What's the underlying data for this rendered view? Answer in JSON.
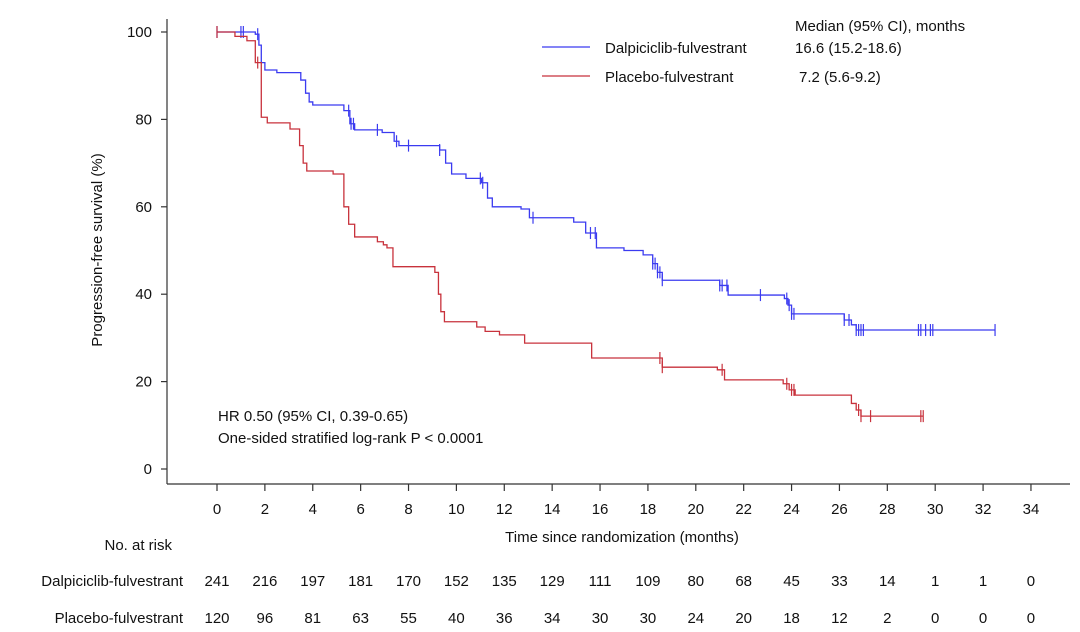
{
  "chart_data": {
    "type": "line",
    "subtype": "kaplan-meier",
    "xlabel": "Time since randomization (months)",
    "ylabel": "Progression-free survival (%)",
    "xlim": [
      0,
      34
    ],
    "ylim": [
      0,
      100
    ],
    "x_ticks": [
      0,
      2,
      4,
      6,
      8,
      10,
      12,
      14,
      16,
      18,
      20,
      22,
      24,
      26,
      28,
      30,
      32,
      34
    ],
    "y_ticks": [
      0,
      20,
      40,
      60,
      80,
      100
    ],
    "grid": false,
    "legend": {
      "placement": "top-right",
      "header": "Median (95% CI), months"
    },
    "annotations": [
      "HR 0.50 (95% CI, 0.39-0.65)",
      "One-sided stratified log-rank P < 0.0001"
    ],
    "series": [
      {
        "name": "Dalpiciclib-fulvestrant",
        "median": "16.6 (15.2-18.6)",
        "color": "#3b3bf0",
        "steps": [
          [
            0,
            100
          ],
          [
            1.6,
            99.5
          ],
          [
            1.75,
            97
          ],
          [
            1.85,
            93
          ],
          [
            2.0,
            91.3
          ],
          [
            2.5,
            90.7
          ],
          [
            3.5,
            89
          ],
          [
            3.7,
            86
          ],
          [
            3.85,
            84
          ],
          [
            4.0,
            83.3
          ],
          [
            5.3,
            82
          ],
          [
            5.55,
            79
          ],
          [
            5.75,
            77.6
          ],
          [
            6.9,
            77
          ],
          [
            7.4,
            75
          ],
          [
            7.6,
            74
          ],
          [
            9.3,
            73
          ],
          [
            9.55,
            70
          ],
          [
            9.8,
            67.5
          ],
          [
            10.4,
            66.5
          ],
          [
            11.05,
            65.5
          ],
          [
            11.3,
            62
          ],
          [
            11.5,
            60
          ],
          [
            12.7,
            59.5
          ],
          [
            13.05,
            57.5
          ],
          [
            14.9,
            56.5
          ],
          [
            15.4,
            54
          ],
          [
            15.85,
            50.6
          ],
          [
            17.0,
            50
          ],
          [
            17.8,
            49
          ],
          [
            18.2,
            47
          ],
          [
            18.4,
            45
          ],
          [
            18.6,
            43.2
          ],
          [
            21.0,
            42
          ],
          [
            21.35,
            39.8
          ],
          [
            23.7,
            39
          ],
          [
            23.85,
            37.5
          ],
          [
            24.0,
            35.5
          ],
          [
            26.2,
            34.1
          ],
          [
            26.5,
            33
          ],
          [
            26.7,
            31.8
          ]
        ],
        "end": 32.5,
        "censored": [
          0,
          1.0,
          1.1,
          1.7,
          5.5,
          5.6,
          5.7,
          6.7,
          7.5,
          8.0,
          9.3,
          11.0,
          11.1,
          13.2,
          15.6,
          15.8,
          18.2,
          18.3,
          18.4,
          18.5,
          18.6,
          21.0,
          21.1,
          21.3,
          22.7,
          23.8,
          23.9,
          24.0,
          24.1,
          26.2,
          26.4,
          26.7,
          26.8,
          26.9,
          27.0,
          29.3,
          29.4,
          29.6,
          29.8,
          29.9,
          32.5
        ],
        "at_risk": [
          241,
          216,
          197,
          181,
          170,
          152,
          135,
          129,
          111,
          109,
          80,
          68,
          45,
          33,
          14,
          1,
          1,
          0
        ]
      },
      {
        "name": "Placebo-fulvestrant",
        "median": "7.2 (5.6-9.2)",
        "color": "#c8323c",
        "steps": [
          [
            0,
            100
          ],
          [
            0.75,
            99
          ],
          [
            1.25,
            98
          ],
          [
            1.6,
            93
          ],
          [
            1.85,
            80.5
          ],
          [
            2.1,
            79.2
          ],
          [
            3.05,
            77.8
          ],
          [
            3.45,
            74
          ],
          [
            3.6,
            70
          ],
          [
            3.75,
            68.2
          ],
          [
            4.85,
            67.5
          ],
          [
            5.3,
            60
          ],
          [
            5.5,
            56
          ],
          [
            5.75,
            53.1
          ],
          [
            6.7,
            52
          ],
          [
            6.95,
            51.3
          ],
          [
            7.1,
            50.6
          ],
          [
            7.35,
            46.3
          ],
          [
            9.1,
            45
          ],
          [
            9.25,
            40
          ],
          [
            9.35,
            36
          ],
          [
            9.5,
            33.7
          ],
          [
            10.85,
            32.5
          ],
          [
            11.2,
            31.5
          ],
          [
            11.8,
            30.7
          ],
          [
            12.85,
            28.8
          ],
          [
            15.65,
            25.4
          ],
          [
            18.6,
            23.3
          ],
          [
            20.9,
            22.7
          ],
          [
            21.2,
            20.4
          ],
          [
            23.65,
            19.5
          ],
          [
            23.9,
            18.1
          ],
          [
            24.15,
            16.9
          ],
          [
            26.5,
            15
          ],
          [
            26.7,
            13.5
          ],
          [
            26.9,
            12.1
          ]
        ],
        "end": 29.5,
        "censored": [
          0,
          1.7,
          18.5,
          18.6,
          21.1,
          23.8,
          24.0,
          24.1,
          26.8,
          26.9,
          27.3,
          29.4,
          29.5
        ],
        "at_risk": [
          120,
          96,
          81,
          63,
          55,
          40,
          36,
          34,
          30,
          30,
          24,
          20,
          18,
          12,
          2,
          0,
          0,
          0
        ]
      }
    ]
  },
  "risk_table": {
    "title": "No. at risk"
  }
}
